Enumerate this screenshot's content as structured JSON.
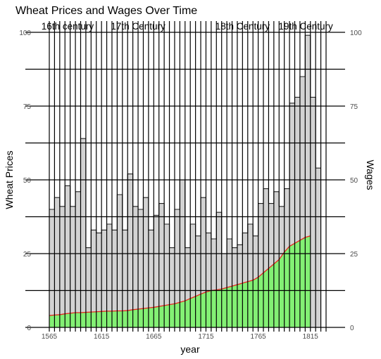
{
  "chart_data": {
    "type": "bar",
    "title": "Wheat Prices and Wages Over Time",
    "xlabel": "year",
    "ylabel": "Wheat Prices",
    "ylabel_right": "Wages",
    "xlim": [
      1565,
      1830
    ],
    "ylim": [
      0,
      100
    ],
    "x_ticks": [
      "1565",
      "1615",
      "1665",
      "1715",
      "1765",
      "1815"
    ],
    "y_ticks": [
      "0",
      "25",
      "50",
      "75",
      "100"
    ],
    "y_ticks_right": [
      "0",
      "25",
      "50",
      "75",
      "100"
    ],
    "grid": true,
    "colors": {
      "wheat_fill": "#d3d3d3",
      "wages_fill": "#7cf26b",
      "wages_line": "#e8261e",
      "grid": "#000000"
    },
    "series": [
      {
        "type": "step-area",
        "x": [
          1565,
          1570,
          1575,
          1580,
          1585,
          1590,
          1595,
          1600,
          1605,
          1610,
          1615,
          1620,
          1625,
          1630,
          1635,
          1640,
          1645,
          1650,
          1655,
          1660,
          1665,
          1670,
          1675,
          1680,
          1685,
          1690,
          1695,
          1700,
          1705,
          1710,
          1715,
          1720,
          1725,
          1730,
          1735,
          1740,
          1745,
          1750,
          1755,
          1760,
          1765,
          1770,
          1775,
          1780,
          1785,
          1790,
          1795,
          1800,
          1805,
          1810,
          1815,
          1820
        ],
        "values": [
          40,
          44,
          41,
          48,
          41,
          46,
          64,
          27,
          33,
          32,
          33,
          35,
          33,
          45,
          33,
          52,
          41,
          40,
          44,
          33,
          38,
          42,
          35,
          27,
          40,
          50,
          27,
          35,
          31,
          44,
          32,
          30,
          39,
          25,
          30,
          27,
          28,
          32,
          35,
          31,
          42,
          47,
          42,
          46,
          41,
          47,
          76,
          78,
          85,
          99,
          78,
          54
        ]
      },
      {
        "type": "area",
        "x": [
          1565,
          1570,
          1575,
          1580,
          1585,
          1590,
          1595,
          1600,
          1605,
          1610,
          1615,
          1620,
          1625,
          1630,
          1635,
          1640,
          1645,
          1650,
          1655,
          1660,
          1665,
          1670,
          1675,
          1680,
          1685,
          1690,
          1695,
          1700,
          1705,
          1710,
          1715,
          1720,
          1725,
          1730,
          1735,
          1740,
          1745,
          1750,
          1755,
          1760,
          1765,
          1770,
          1775,
          1780,
          1785,
          1790,
          1795,
          1800,
          1805,
          1810,
          1815
        ],
        "values": [
          4.0,
          4.2,
          4.3,
          4.6,
          4.8,
          5.0,
          5.0,
          5.1,
          5.2,
          5.3,
          5.4,
          5.5,
          5.5,
          5.6,
          5.6,
          5.7,
          6.0,
          6.2,
          6.4,
          6.6,
          6.8,
          7.1,
          7.4,
          7.7,
          8.0,
          8.5,
          9.0,
          9.8,
          10.5,
          11.3,
          12.0,
          12.5,
          12.7,
          13.0,
          13.5,
          14.0,
          14.5,
          15.0,
          15.5,
          16.0,
          17.0,
          18.5,
          20.0,
          21.5,
          23.0,
          25.5,
          27.5,
          28.5,
          29.5,
          30.5,
          31.0
        ]
      }
    ],
    "centuries": [
      {
        "label": "16th century",
        "start": 1565,
        "end": 1600
      },
      {
        "label": "17th Century",
        "start": 1600,
        "end": 1700
      },
      {
        "label": "18th Century",
        "start": 1700,
        "end": 1800
      },
      {
        "label": "19th Century",
        "start": 1800,
        "end": 1821
      }
    ]
  }
}
